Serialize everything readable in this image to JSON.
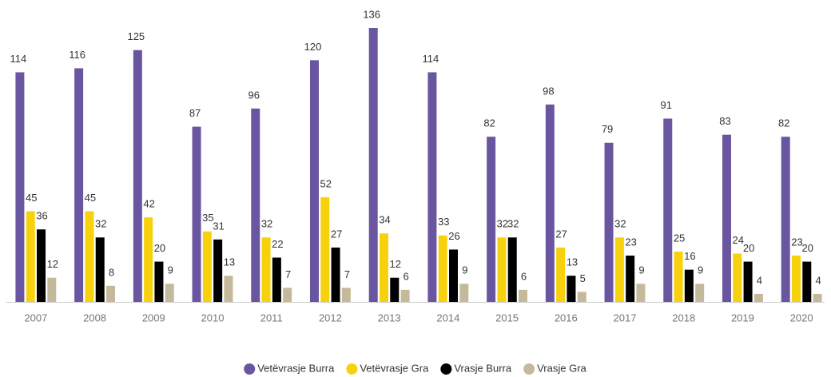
{
  "chart_data": {
    "type": "bar",
    "categories": [
      "2007",
      "2008",
      "2009",
      "2010",
      "2011",
      "2012",
      "2013",
      "2014",
      "2015",
      "2016",
      "2017",
      "2018",
      "2019",
      "2020"
    ],
    "series": [
      {
        "name": "Vetëvrasje Burra",
        "color": "#6a56a0",
        "values": [
          114,
          116,
          125,
          87,
          96,
          120,
          136,
          114,
          82,
          98,
          79,
          91,
          83,
          82
        ]
      },
      {
        "name": "Vetëvrasje Gra",
        "color": "#f7d20c",
        "values": [
          45,
          45,
          42,
          35,
          32,
          52,
          34,
          33,
          32,
          27,
          32,
          25,
          24,
          23
        ]
      },
      {
        "name": "Vrasje Burra",
        "color": "#000000",
        "values": [
          36,
          32,
          20,
          31,
          22,
          27,
          12,
          26,
          32,
          13,
          23,
          16,
          20,
          20
        ]
      },
      {
        "name": "Vrasje Gra",
        "color": "#c5b99b",
        "values": [
          12,
          8,
          9,
          13,
          7,
          7,
          6,
          9,
          6,
          5,
          9,
          9,
          4,
          4
        ]
      }
    ]
  }
}
